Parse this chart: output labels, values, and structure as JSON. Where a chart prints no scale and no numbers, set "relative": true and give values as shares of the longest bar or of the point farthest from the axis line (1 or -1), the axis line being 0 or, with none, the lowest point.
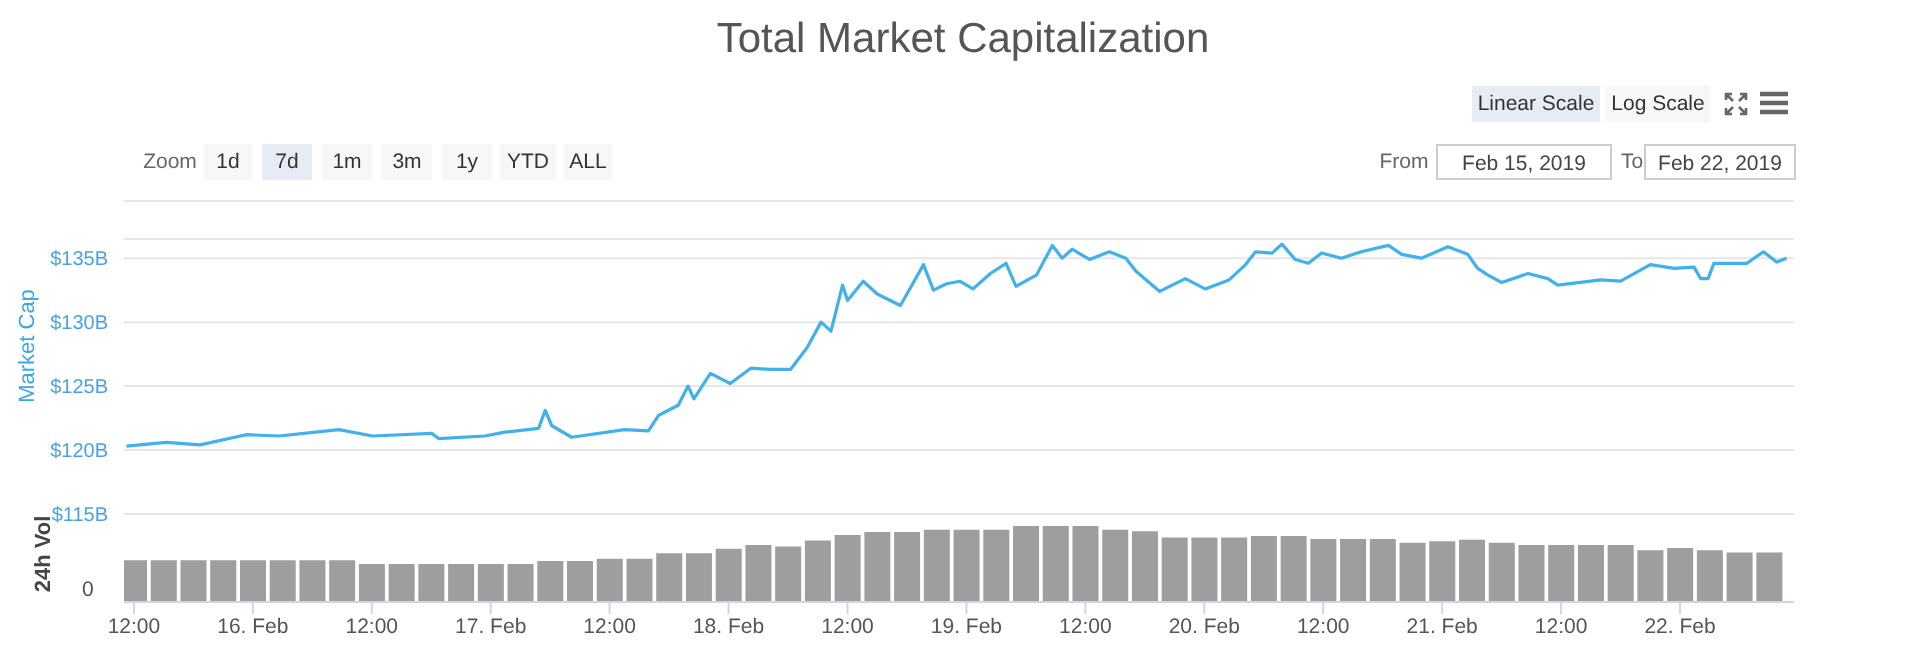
{
  "chart_data": [
    {
      "type": "line",
      "title": "Total Market Capitalization",
      "ylabel": "Market Cap",
      "x": [
        "2019-02-15T11:15",
        "2019-02-15T15:15",
        "2019-02-15T18:40",
        "2019-02-15T23:20",
        "2019-02-16T02:40",
        "2019-02-16T08:40",
        "2019-02-16T12:05",
        "2019-02-16T18:05",
        "2019-02-16T18:45",
        "2019-02-16T23:25",
        "2019-02-17T01:25",
        "2019-02-17T04:50",
        "2019-02-17T05:30",
        "2019-02-17T06:10",
        "2019-02-17T08:10",
        "2019-02-17T13:30",
        "2019-02-17T15:55",
        "2019-02-17T16:55",
        "2019-02-17T18:55",
        "2019-02-17T19:55",
        "2019-02-17T20:30",
        "2019-02-17T22:10",
        "2019-02-18T00:10",
        "2019-02-18T02:15",
        "2019-02-18T04:15",
        "2019-02-18T06:15",
        "2019-02-18T07:55",
        "2019-02-18T09:20",
        "2019-02-18T10:20",
        "2019-02-18T11:30",
        "2019-02-18T12:00",
        "2019-02-18T13:35",
        "2019-02-18T15:00",
        "2019-02-18T17:20",
        "2019-02-18T18:00",
        "2019-02-18T19:40",
        "2019-02-18T20:40",
        "2019-02-18T22:00",
        "2019-02-18T23:20",
        "2019-02-19T00:40",
        "2019-02-19T02:25",
        "2019-02-19T04:00",
        "2019-02-19T05:00",
        "2019-02-19T07:05",
        "2019-02-19T08:40",
        "2019-02-19T09:40",
        "2019-02-19T10:40",
        "2019-02-19T12:25",
        "2019-02-19T14:25",
        "2019-02-19T16:05",
        "2019-02-19T17:05",
        "2019-02-19T19:30",
        "2019-02-19T22:05",
        "2019-02-20T00:05",
        "2019-02-20T02:30",
        "2019-02-20T04:10",
        "2019-02-20T05:10",
        "2019-02-20T06:50",
        "2019-02-20T07:50",
        "2019-02-20T09:10",
        "2019-02-20T10:30",
        "2019-02-20T11:50",
        "2019-02-20T13:50",
        "2019-02-20T15:50",
        "2019-02-20T18:35",
        "2019-02-20T19:55",
        "2019-02-20T21:55",
        "2019-02-21T00:35",
        "2019-02-21T02:35",
        "2019-02-21T03:35",
        "2019-02-21T04:35",
        "2019-02-21T06:00",
        "2019-02-21T08:40",
        "2019-02-21T10:40",
        "2019-02-21T11:40",
        "2019-02-21T16:00",
        "2019-02-21T18:00",
        "2019-02-21T21:00",
        "2019-02-21T23:25",
        "2019-02-22T01:25",
        "2019-02-22T02:05",
        "2019-02-22T02:50",
        "2019-02-22T03:25",
        "2019-02-22T06:45",
        "2019-02-22T08:25",
        "2019-02-22T09:45",
        "2019-02-22T10:45"
      ],
      "series": [
        {
          "color": "#41b1ec",
          "values": [
            120.3,
            120.6,
            120.4,
            121.2,
            121.1,
            121.6,
            121.1,
            121.3,
            120.9,
            121.1,
            121.4,
            121.7,
            123.1,
            121.9,
            121.0,
            121.6,
            121.5,
            122.7,
            123.5,
            125.0,
            124.0,
            126.0,
            125.2,
            126.4,
            126.3,
            126.3,
            128.0,
            130.0,
            129.3,
            132.9,
            131.7,
            133.2,
            132.2,
            131.3,
            132.2,
            134.5,
            132.5,
            133.0,
            133.2,
            132.6,
            133.8,
            134.6,
            132.8,
            133.7,
            136.0,
            135.0,
            135.7,
            134.9,
            135.5,
            135.0,
            134.0,
            132.4,
            133.4,
            132.6,
            133.3,
            134.5,
            135.5,
            135.4,
            136.1,
            134.9,
            134.6,
            135.4,
            135.0,
            135.5,
            136.0,
            135.3,
            135.0,
            135.9,
            135.3,
            134.2,
            133.7,
            133.1,
            133.8,
            133.4,
            132.9,
            133.3,
            133.2,
            134.5,
            134.2,
            134.3,
            133.4,
            133.4,
            134.6,
            134.6,
            135.5,
            134.7,
            135.0
          ]
        }
      ],
      "xlim": [
        "2019-02-15T11:00",
        "2019-02-22T11:30"
      ],
      "ylim": [
        115,
        136.5
      ],
      "yticks": [
        {
          "value": 115,
          "label": "$115B"
        },
        {
          "value": 120,
          "label": "$120B"
        },
        {
          "value": 125,
          "label": "$125B"
        },
        {
          "value": 130,
          "label": "$130B"
        },
        {
          "value": 135,
          "label": "$135B"
        }
      ],
      "grid": "y",
      "tick_labels": "y"
    },
    {
      "type": "bar",
      "ylabel": "24h Vol",
      "relative": true,
      "color": "#9e9e9e",
      "x": [
        "2019-02-15T12:00",
        "2019-02-15T15:00",
        "2019-02-15T18:00",
        "2019-02-15T21:00",
        "2019-02-16T00:00",
        "2019-02-16T03:00",
        "2019-02-16T06:00",
        "2019-02-16T09:00",
        "2019-02-16T12:00",
        "2019-02-16T15:00",
        "2019-02-16T18:00",
        "2019-02-16T21:00",
        "2019-02-17T00:00",
        "2019-02-17T03:00",
        "2019-02-17T06:00",
        "2019-02-17T09:00",
        "2019-02-17T12:00",
        "2019-02-17T15:00",
        "2019-02-17T18:00",
        "2019-02-17T21:00",
        "2019-02-18T00:00",
        "2019-02-18T03:00",
        "2019-02-18T06:00",
        "2019-02-18T09:00",
        "2019-02-18T12:00",
        "2019-02-18T15:00",
        "2019-02-18T18:00",
        "2019-02-18T21:00",
        "2019-02-19T00:00",
        "2019-02-19T03:00",
        "2019-02-19T06:00",
        "2019-02-19T09:00",
        "2019-02-19T12:00",
        "2019-02-19T15:00",
        "2019-02-19T18:00",
        "2019-02-19T21:00",
        "2019-02-20T00:00",
        "2019-02-20T03:00",
        "2019-02-20T06:00",
        "2019-02-20T09:00",
        "2019-02-20T12:00",
        "2019-02-20T15:00",
        "2019-02-20T18:00",
        "2019-02-20T21:00",
        "2019-02-21T00:00",
        "2019-02-21T03:00",
        "2019-02-21T06:00",
        "2019-02-21T09:00",
        "2019-02-21T12:00",
        "2019-02-21T15:00",
        "2019-02-21T18:00",
        "2019-02-21T21:00",
        "2019-02-22T00:00",
        "2019-02-22T03:00",
        "2019-02-22T06:00",
        "2019-02-22T09:00"
      ],
      "values": [
        0.55,
        0.55,
        0.55,
        0.55,
        0.55,
        0.55,
        0.55,
        0.55,
        0.5,
        0.5,
        0.5,
        0.5,
        0.5,
        0.5,
        0.54,
        0.54,
        0.57,
        0.57,
        0.64,
        0.64,
        0.7,
        0.75,
        0.73,
        0.81,
        0.88,
        0.92,
        0.92,
        0.95,
        0.95,
        0.95,
        1.0,
        1.0,
        1.0,
        0.95,
        0.93,
        0.85,
        0.85,
        0.85,
        0.87,
        0.87,
        0.83,
        0.83,
        0.83,
        0.78,
        0.8,
        0.82,
        0.78,
        0.75,
        0.75,
        0.75,
        0.75,
        0.68,
        0.71,
        0.68,
        0.65,
        0.65
      ],
      "xlim": [
        "2019-02-15T11:00",
        "2019-02-22T11:30"
      ],
      "xticks": [
        {
          "value": "2019-02-15T12:00",
          "label": "12:00"
        },
        {
          "value": "2019-02-16T00:00",
          "label": "16. Feb"
        },
        {
          "value": "2019-02-16T12:00",
          "label": "12:00"
        },
        {
          "value": "2019-02-17T00:00",
          "label": "17. Feb"
        },
        {
          "value": "2019-02-17T12:00",
          "label": "12:00"
        },
        {
          "value": "2019-02-18T00:00",
          "label": "18. Feb"
        },
        {
          "value": "2019-02-18T12:00",
          "label": "12:00"
        },
        {
          "value": "2019-02-19T00:00",
          "label": "19. Feb"
        },
        {
          "value": "2019-02-19T12:00",
          "label": "12:00"
        },
        {
          "value": "2019-02-20T00:00",
          "label": "20. Feb"
        },
        {
          "value": "2019-02-20T12:00",
          "label": "12:00"
        },
        {
          "value": "2019-02-21T00:00",
          "label": "21. Feb"
        },
        {
          "value": "2019-02-21T12:00",
          "label": "12:00"
        },
        {
          "value": "2019-02-22T00:00",
          "label": "22. Feb"
        }
      ],
      "annotations": [
        "0"
      ]
    },
    {
      "type": "other",
      "annotations": [
        "Linear Scale",
        "Log Scale",
        "Zoom",
        "1d",
        "7d",
        "1m",
        "3m",
        "1y",
        "YTD",
        "ALL",
        "From",
        "Feb 15, 2019",
        "To",
        "Feb 22, 2019"
      ]
    }
  ]
}
